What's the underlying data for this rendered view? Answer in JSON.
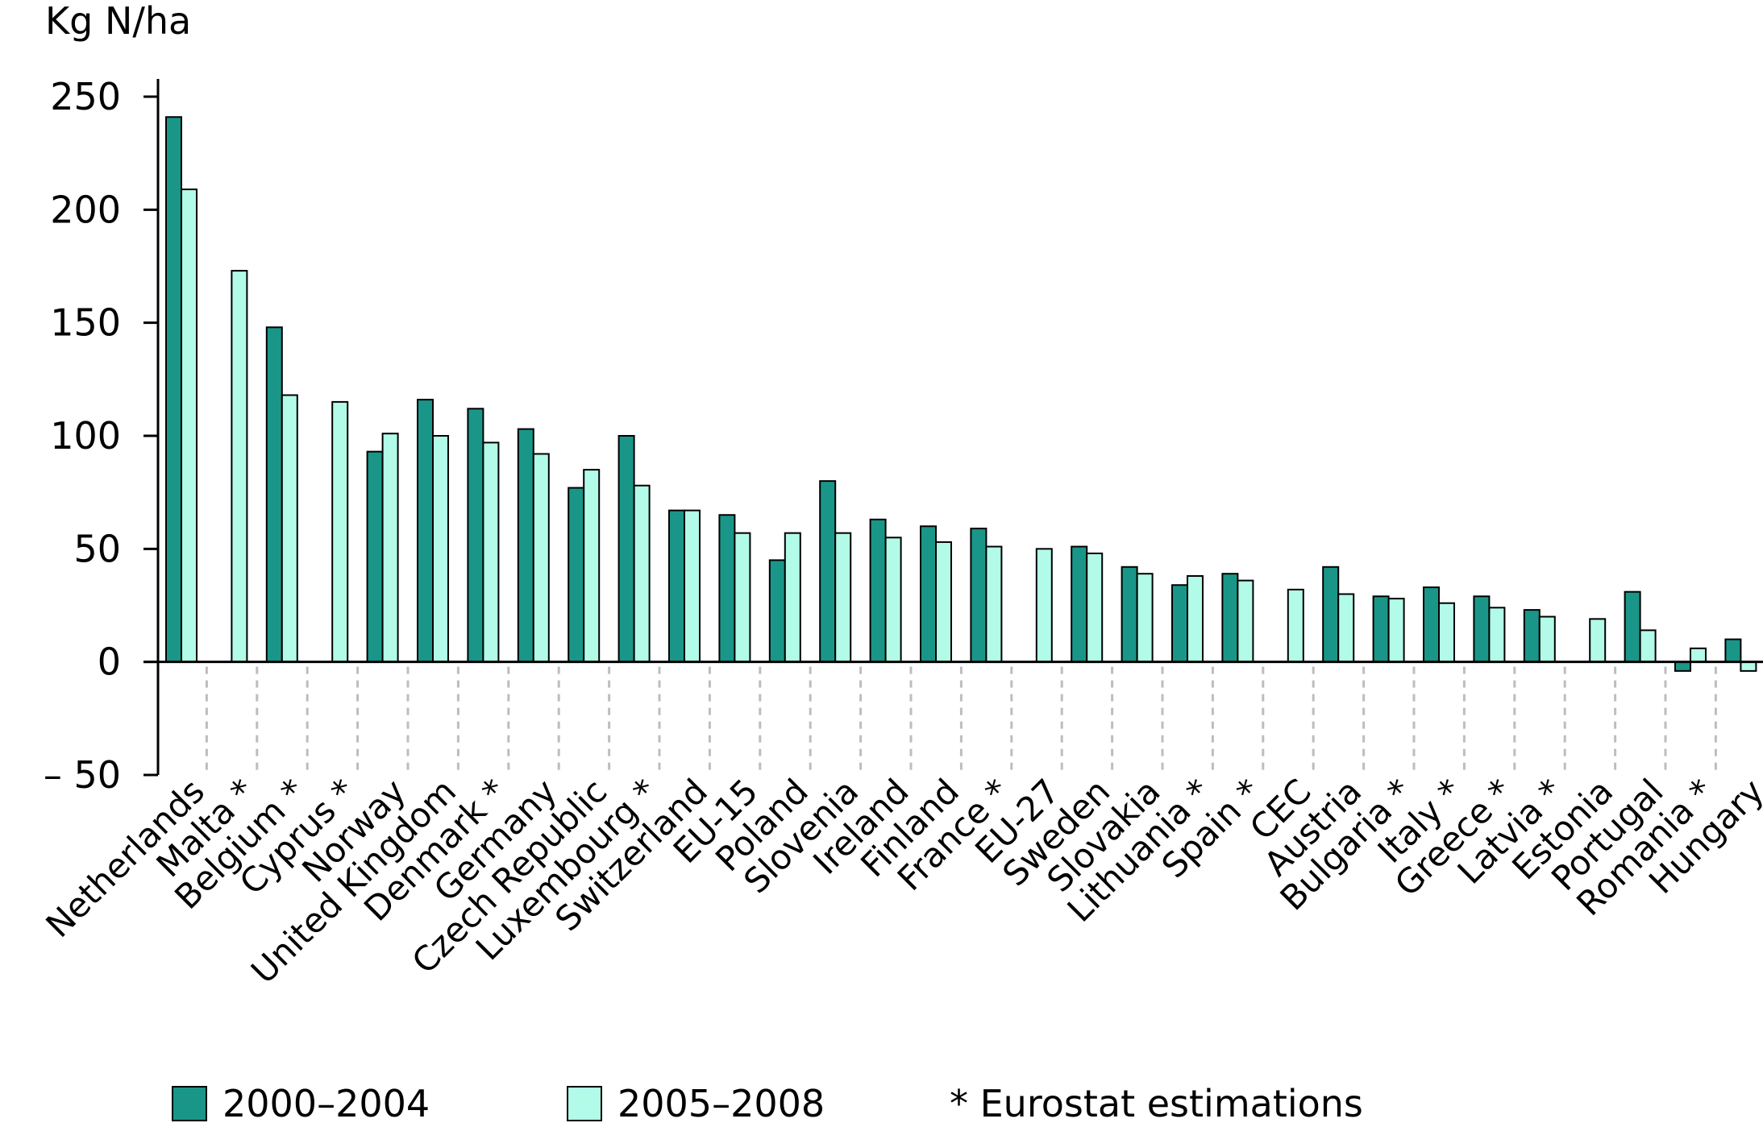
{
  "chart_data": {
    "type": "bar",
    "ylabel": "Kg N/ha",
    "ylim": [
      -50,
      250
    ],
    "yticks": [
      250,
      200,
      150,
      100,
      50,
      0,
      -50
    ],
    "ytick_labels": [
      "250",
      "200",
      "150",
      "100",
      "50",
      "0",
      "– 50"
    ],
    "grid": false,
    "legend_position": "bottom",
    "categories": [
      "Netherlands",
      "Malta *",
      "Belgium *",
      "Cyprus *",
      "Norway",
      "United Kingdom",
      "Denmark *",
      "Germany",
      "Czech Republic",
      "Luxembourg *",
      "Switzerland",
      "EU-15",
      "Poland",
      "Slovenia",
      "Ireland",
      "Finland",
      "France *",
      "EU-27",
      "Sweden",
      "Slovakia",
      "Lithuania *",
      "Spain *",
      "CEC",
      "Austria",
      "Bulgaria *",
      "Italy *",
      "Greece *",
      "Latvia *",
      "Estonia",
      "Portugal",
      "Romania *",
      "Hungary"
    ],
    "series": [
      {
        "name": "2000–2004",
        "color": "#1a9688",
        "values": [
          241,
          null,
          148,
          null,
          93,
          116,
          112,
          103,
          77,
          100,
          67,
          65,
          45,
          80,
          63,
          60,
          59,
          null,
          51,
          42,
          34,
          39,
          null,
          42,
          29,
          33,
          29,
          23,
          null,
          31,
          -4,
          10
        ]
      },
      {
        "name": "2005–2008",
        "color": "#b2fbe8",
        "values": [
          209,
          173,
          118,
          115,
          101,
          100,
          97,
          92,
          85,
          78,
          67,
          57,
          57,
          57,
          55,
          53,
          51,
          50,
          48,
          39,
          38,
          36,
          32,
          30,
          28,
          26,
          24,
          20,
          19,
          14,
          6,
          -4
        ]
      }
    ],
    "legend_note": "* Eurostat estimations"
  }
}
